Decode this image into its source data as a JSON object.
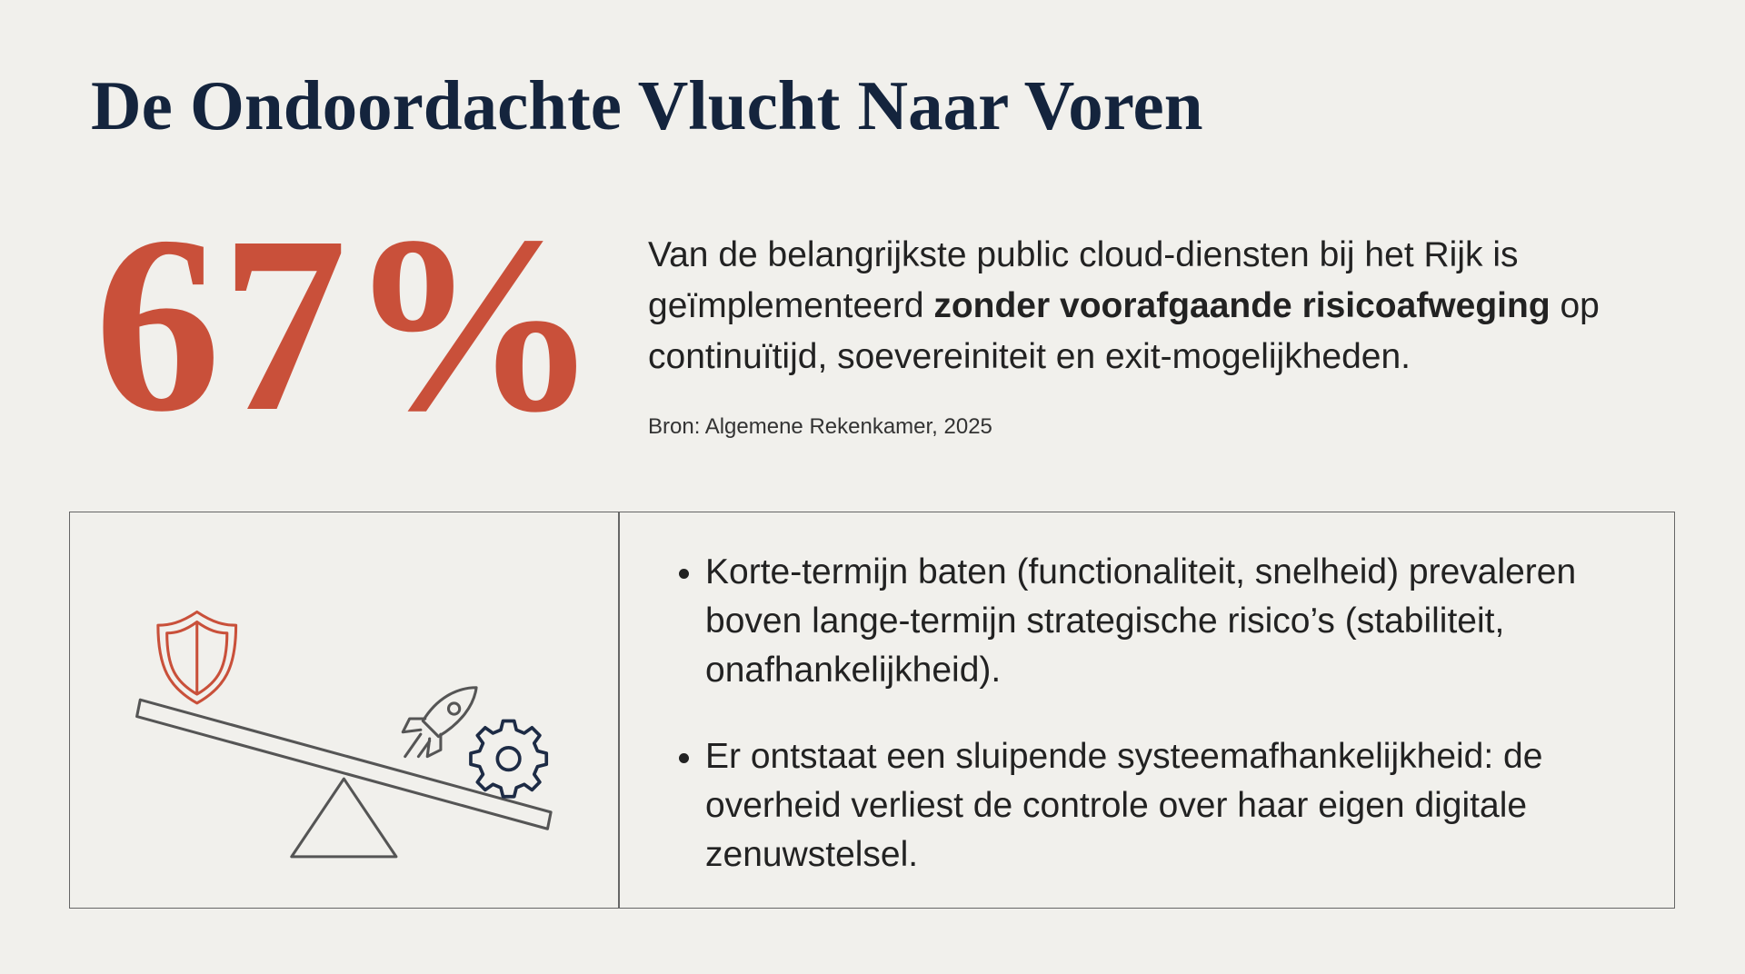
{
  "header": {
    "title": "De Ondoordachte Vlucht Naar Voren"
  },
  "stat": {
    "value": "67%",
    "text_before": "Van de belangrijkste public cloud-diensten bij het Rijk is geïmplementeerd ",
    "text_bold": "zonder voorafgaande risicoafweging",
    "text_after": " op continuïtijd, soevereiniteit en exit-mogelijkheden.",
    "source": "Bron: Algemene Rekenkamer, 2025"
  },
  "bullets": [
    "Korte-termijn baten (functionaliteit, snelheid) prevaleren boven lange-termijn strategische risico’s (stabiliteit, onafhankelijkheid).",
    "Er ontstaat een sluipende systeemafhankelijkheid: de overheid verliest de controle over haar eigen digitale zenuwstelsel."
  ]
}
